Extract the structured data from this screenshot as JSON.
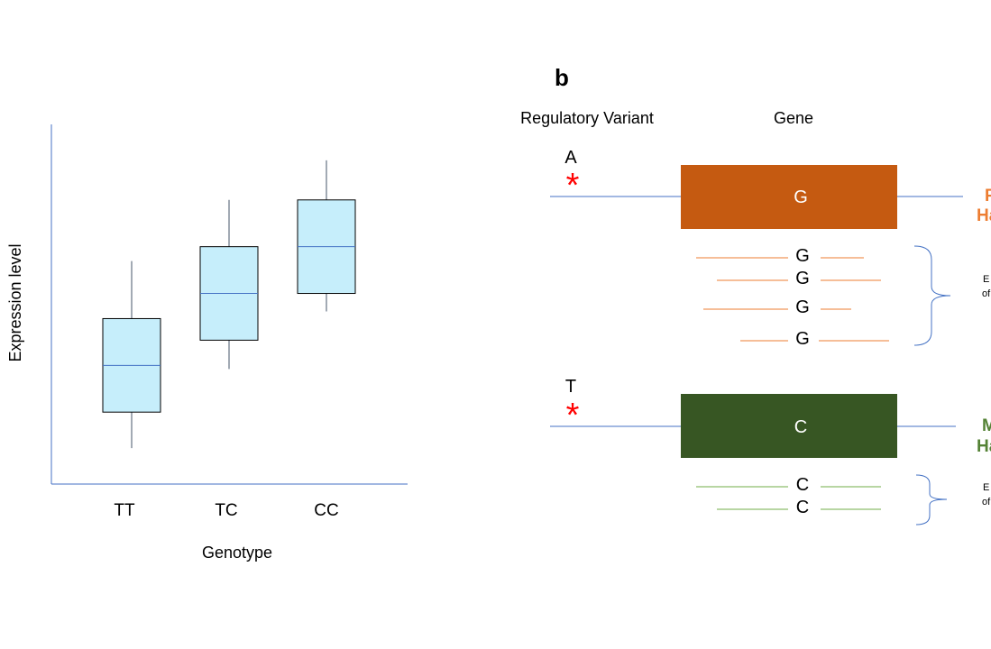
{
  "panel_a": {
    "ylabel": "Expression level",
    "xlabel": "Genotype",
    "colors": {
      "axis": "#4472c4",
      "box_fill": "#c6eefb",
      "box_stroke": "#000000",
      "median": "#4472c4",
      "whisker": "#44546a"
    },
    "chart_data": {
      "type": "box",
      "title": "",
      "xlabel": "Genotype",
      "ylabel": "Expression level",
      "categories": [
        "TT",
        "TC",
        "CC"
      ],
      "boxes": [
        {
          "category": "TT",
          "whisker_low": 0.1,
          "q1": 0.2,
          "median": 0.33,
          "q3": 0.46,
          "whisker_high": 0.62
        },
        {
          "category": "TC",
          "whisker_low": 0.32,
          "q1": 0.4,
          "median": 0.53,
          "q3": 0.66,
          "whisker_high": 0.79
        },
        {
          "category": "CC",
          "whisker_low": 0.48,
          "q1": 0.53,
          "median": 0.66,
          "q3": 0.79,
          "whisker_high": 0.9
        }
      ],
      "ylim": [
        0,
        1
      ],
      "grid": false
    }
  },
  "panel_b": {
    "label": "b",
    "col_variant": "Regulatory Variant",
    "col_gene": "Gene",
    "allele_top": "A",
    "allele_bottom": "T",
    "asterisk": "*",
    "gene_top_label": "G",
    "gene_bottom_label": "C",
    "hap_top_line1": "P",
    "hap_top_line2": "Ha",
    "hap_bottom_line1": "M",
    "hap_bottom_line2": "Ha",
    "expr_top_line1": "E",
    "expr_top_line2": "of",
    "expr_bottom_line1": "E",
    "expr_bottom_line2": "of",
    "transcripts_top": [
      "G",
      "G",
      "G",
      "G"
    ],
    "transcripts_bottom": [
      "C",
      "C"
    ],
    "colors": {
      "gene_top": "#c55a11",
      "gene_bottom": "#375623",
      "transcript_top": "#ed7d31",
      "transcript_bottom": "#70ad47",
      "dna_line": "#4472c4",
      "asterisk": "#ff0000",
      "hap_top_text": "#ed7d31",
      "hap_bottom_text": "#548235",
      "brace": "#4472c4"
    }
  }
}
